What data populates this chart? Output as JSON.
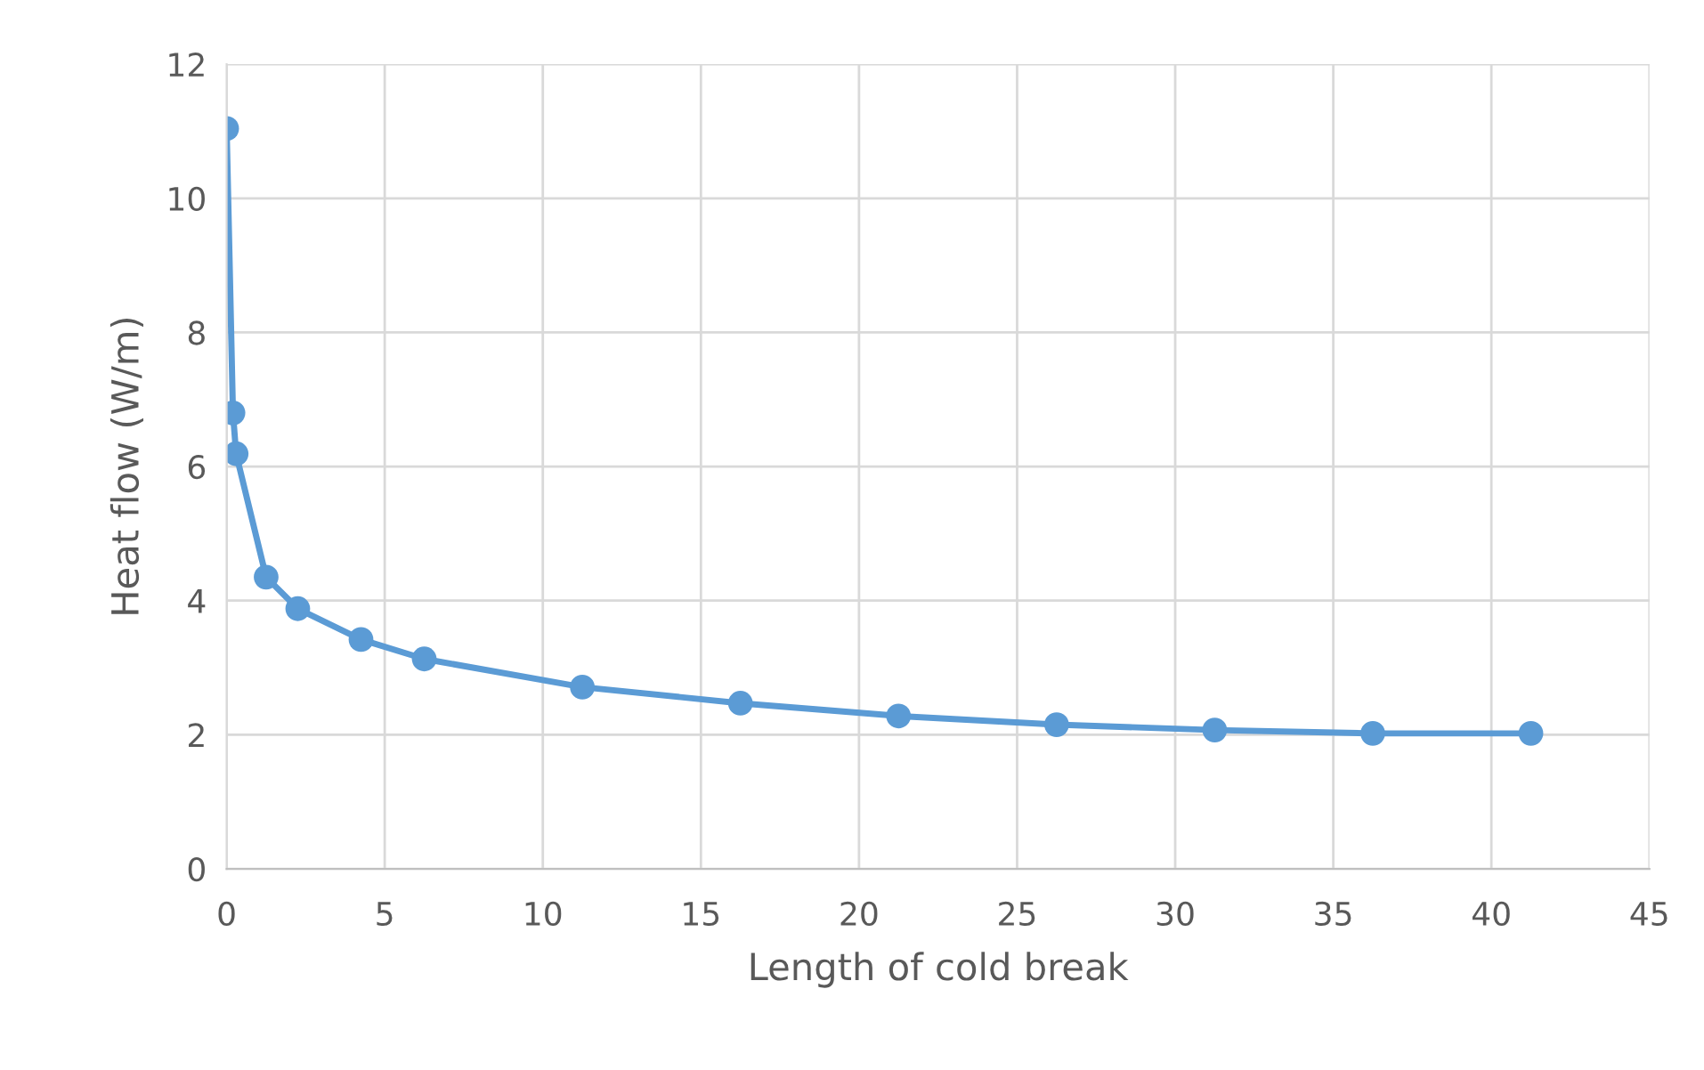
{
  "chart_data": {
    "type": "line",
    "xlabel": "Length of cold break",
    "ylabel": "Heat flow (W/m)",
    "series": [
      {
        "color": "#5b9bd5",
        "x": [
          0,
          0.2,
          0.3,
          1.25,
          2.25,
          4.25,
          6.25,
          11.25,
          16.25,
          21.25,
          26.25,
          31.25,
          36.25,
          41.25
        ],
        "values": [
          11.04,
          6.8,
          6.19,
          4.35,
          3.88,
          3.42,
          3.13,
          2.71,
          2.47,
          2.28,
          2.15,
          2.07,
          2.02,
          2.02
        ]
      }
    ],
    "xlim": [
      0,
      45
    ],
    "xticks": [
      0,
      5,
      10,
      15,
      20,
      25,
      30,
      35,
      40,
      45
    ],
    "ylim": [
      0,
      12
    ],
    "yticks": [
      0,
      2,
      4,
      6,
      8,
      10,
      12
    ],
    "grid": true,
    "marker": "circle",
    "line_style": "solid"
  }
}
